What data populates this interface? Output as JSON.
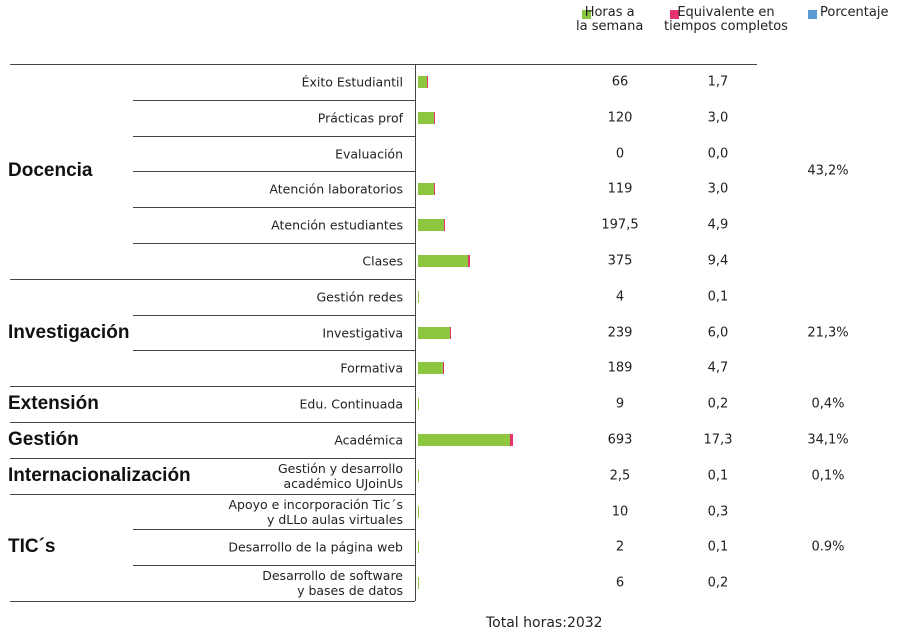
{
  "chart_data": {
    "type": "bar",
    "legend": [
      {
        "name": "Horas a\nla semana",
        "color": "#8dc63f"
      },
      {
        "name": "Equivalente en\ntiempos completos",
        "color": "#e6336f"
      },
      {
        "name": "Porcentaje",
        "color": "#5b9bd5"
      }
    ],
    "groups": [
      {
        "name": "Docencia",
        "percent": 43.2,
        "percent_label": "43,2%",
        "categories": [
          "Éxito Estudiantil",
          "Prácticas prof",
          "Evaluación",
          "Atención laboratorios",
          "Atención estudiantes",
          "Clases"
        ],
        "hours": [
          66,
          120,
          0,
          119,
          197.5,
          375
        ],
        "hours_labels": [
          "66",
          "120",
          "0",
          "119",
          "197,5",
          "375"
        ],
        "fte": [
          1.7,
          3.0,
          0.0,
          3.0,
          4.9,
          9.4
        ],
        "fte_labels": [
          "1,7",
          "3,0",
          "0,0",
          "3,0",
          "4,9",
          "9,4"
        ]
      },
      {
        "name": "Investigación",
        "percent": 21.3,
        "percent_label": "21,3%",
        "categories": [
          "Gestión redes",
          "Investigativa",
          "Formativa"
        ],
        "hours": [
          4,
          239,
          189
        ],
        "hours_labels": [
          "4",
          "239",
          "189"
        ],
        "fte": [
          0.1,
          6.0,
          4.7
        ],
        "fte_labels": [
          "0,1",
          "6,0",
          "4,7"
        ]
      },
      {
        "name": "Extensión",
        "percent": 0.4,
        "percent_label": "0,4%",
        "categories": [
          "Edu. Continuada"
        ],
        "hours": [
          9
        ],
        "hours_labels": [
          "9"
        ],
        "fte": [
          0.2
        ],
        "fte_labels": [
          "0,2"
        ]
      },
      {
        "name": "Gestión",
        "percent": 34.1,
        "percent_label": "34,1%",
        "categories": [
          "Académica"
        ],
        "hours": [
          693
        ],
        "hours_labels": [
          "693"
        ],
        "fte": [
          17.3
        ],
        "fte_labels": [
          "17,3"
        ]
      },
      {
        "name": "Internacionalización",
        "percent": 0.1,
        "percent_label": "0,1%",
        "categories": [
          "Gestión y desarrollo\nacadémico UJoinUs"
        ],
        "hours": [
          2.5
        ],
        "hours_labels": [
          "2,5"
        ],
        "fte": [
          0.1
        ],
        "fte_labels": [
          "0,1"
        ]
      },
      {
        "name": "TIC´s",
        "percent": 0.9,
        "percent_label": "0.9%",
        "categories": [
          "Apoyo e incorporación Tic´s\ny dLLo aulas virtuales",
          "Desarrollo de la página web",
          "Desarrollo de software\ny bases de datos"
        ],
        "hours": [
          10,
          2,
          6
        ],
        "hours_labels": [
          "10",
          "2",
          "6"
        ],
        "fte": [
          0.3,
          0.1,
          0.2
        ],
        "fte_labels": [
          "0,3",
          "0,1",
          "0,2"
        ]
      }
    ],
    "total_label": "Total horas:",
    "total": 2032
  }
}
